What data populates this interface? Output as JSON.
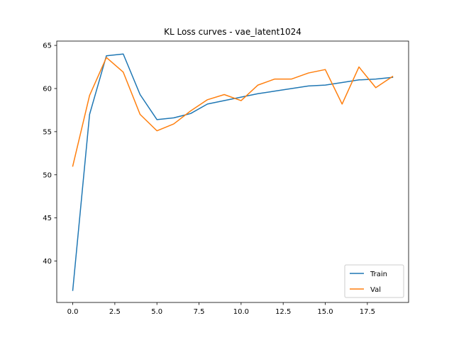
{
  "chart_data": {
    "type": "line",
    "title": "KL Loss curves - vae_latent1024",
    "xlabel": "",
    "ylabel": "",
    "xlim": [
      -0.95,
      19.95
    ],
    "ylim": [
      35.2,
      65.5
    ],
    "xticks": [
      0,
      2.5,
      5,
      7.5,
      10,
      12.5,
      15,
      17.5
    ],
    "xtick_labels": [
      "0.0",
      "2.5",
      "5.0",
      "7.5",
      "10.0",
      "12.5",
      "15.0",
      "17.5"
    ],
    "yticks": [
      40,
      45,
      50,
      55,
      60,
      65
    ],
    "ytick_labels": [
      "40",
      "45",
      "50",
      "55",
      "60",
      "65"
    ],
    "grid": false,
    "legend_position": "lower-right",
    "x": [
      0,
      1,
      2,
      3,
      4,
      5,
      6,
      7,
      8,
      9,
      10,
      11,
      12,
      13,
      14,
      15,
      16,
      17,
      18,
      19
    ],
    "series": [
      {
        "name": "Train",
        "color": "#1f77b4",
        "values": [
          36.6,
          57.0,
          63.8,
          64.0,
          59.3,
          56.4,
          56.6,
          57.1,
          58.2,
          58.6,
          59.0,
          59.4,
          59.7,
          60.0,
          60.3,
          60.4,
          60.7,
          61.0,
          61.1,
          61.3
        ]
      },
      {
        "name": "Val",
        "color": "#ff7f0e",
        "values": [
          51.0,
          59.2,
          63.6,
          61.9,
          57.0,
          55.1,
          55.9,
          57.4,
          58.7,
          59.3,
          58.6,
          60.4,
          61.1,
          61.1,
          61.8,
          62.2,
          58.2,
          62.5,
          60.1,
          61.4
        ]
      }
    ]
  }
}
